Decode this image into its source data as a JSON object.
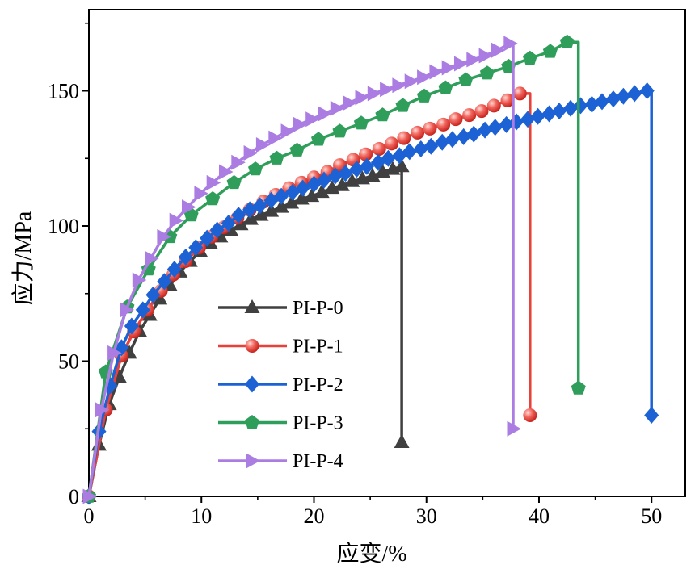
{
  "chart_data": {
    "type": "line",
    "xlabel": "应变/%",
    "ylabel": "应力/MPa",
    "xlim": [
      0,
      53
    ],
    "ylim": [
      0,
      180
    ],
    "x_ticks": [
      0,
      10,
      20,
      30,
      40,
      50
    ],
    "y_ticks": [
      0,
      50,
      100,
      150
    ],
    "x_minor_ticks": [
      5,
      15,
      25,
      35,
      45
    ],
    "y_minor_ticks": [
      25,
      75,
      125,
      175
    ],
    "grid": false,
    "legend_position": "lower-left",
    "series": [
      {
        "name": "PI-P-0",
        "color": "#404040",
        "marker": "triangle-up",
        "points": [
          [
            0,
            0
          ],
          [
            0.9,
            19
          ],
          [
            1.8,
            34
          ],
          [
            2.7,
            44
          ],
          [
            3.6,
            53
          ],
          [
            4.5,
            61
          ],
          [
            5.4,
            67
          ],
          [
            6.3,
            73
          ],
          [
            7.2,
            78
          ],
          [
            8.1,
            83
          ],
          [
            9,
            87
          ],
          [
            9.9,
            90.5
          ],
          [
            10.8,
            93.5
          ],
          [
            11.7,
            96
          ],
          [
            12.6,
            98.5
          ],
          [
            13.5,
            100.5
          ],
          [
            14.4,
            102.5
          ],
          [
            15.3,
            104
          ],
          [
            16.2,
            105.5
          ],
          [
            17.1,
            107
          ],
          [
            18,
            108.5
          ],
          [
            18.9,
            110
          ],
          [
            19.8,
            111
          ],
          [
            20.7,
            112.5
          ],
          [
            21.6,
            114
          ],
          [
            22.5,
            115
          ],
          [
            23.4,
            116.5
          ],
          [
            24.3,
            117.5
          ],
          [
            25.2,
            118.5
          ],
          [
            26.1,
            120
          ],
          [
            27,
            121
          ],
          [
            27.8,
            122
          ]
        ],
        "drop_x": 27.8,
        "drop_y": 20
      },
      {
        "name": "PI-P-1",
        "color": "#e8413a",
        "marker": "circle",
        "points": [
          [
            0,
            0
          ],
          [
            1.5,
            32
          ],
          [
            2.9,
            52
          ],
          [
            4,
            61
          ],
          [
            5.2,
            69
          ],
          [
            6.4,
            76
          ],
          [
            7.5,
            82
          ],
          [
            8.6,
            87
          ],
          [
            9.8,
            92
          ],
          [
            10.9,
            96
          ],
          [
            12,
            99.5
          ],
          [
            13.2,
            103
          ],
          [
            14.3,
            106
          ],
          [
            15.5,
            109
          ],
          [
            16.6,
            111.5
          ],
          [
            17.8,
            114
          ],
          [
            18.9,
            116
          ],
          [
            20,
            118
          ],
          [
            21.2,
            120
          ],
          [
            22.3,
            122.5
          ],
          [
            23.5,
            124.5
          ],
          [
            24.6,
            126.5
          ],
          [
            25.8,
            128.5
          ],
          [
            26.9,
            130.5
          ],
          [
            28,
            132.5
          ],
          [
            29.2,
            134.5
          ],
          [
            30.3,
            136
          ],
          [
            31.5,
            137.5
          ],
          [
            32.6,
            139.5
          ],
          [
            33.8,
            141
          ],
          [
            34.9,
            142.5
          ],
          [
            36,
            144.5
          ],
          [
            37.2,
            146.5
          ],
          [
            38.3,
            149
          ]
        ],
        "drop_x": 39.2,
        "drop_y": 30
      },
      {
        "name": "PI-P-2",
        "color": "#1d62d4",
        "marker": "diamond",
        "points": [
          [
            0,
            0
          ],
          [
            0.9,
            24
          ],
          [
            1.9,
            41
          ],
          [
            2.9,
            55
          ],
          [
            3.8,
            63
          ],
          [
            4.8,
            69
          ],
          [
            5.7,
            74.5
          ],
          [
            6.7,
            79.5
          ],
          [
            7.6,
            84
          ],
          [
            8.6,
            88.5
          ],
          [
            9.5,
            92
          ],
          [
            10.5,
            95.5
          ],
          [
            11.4,
            98.5
          ],
          [
            12.4,
            101
          ],
          [
            13.3,
            104
          ],
          [
            14.3,
            106
          ],
          [
            15.2,
            107.5
          ],
          [
            16.2,
            109.5
          ],
          [
            17.1,
            111
          ],
          [
            18.1,
            112.5
          ],
          [
            19,
            114
          ],
          [
            20,
            115.5
          ],
          [
            20.9,
            117
          ],
          [
            21.9,
            118.5
          ],
          [
            22.8,
            119.5
          ],
          [
            23.8,
            121
          ],
          [
            24.7,
            122
          ],
          [
            25.7,
            123.5
          ],
          [
            26.6,
            125
          ],
          [
            27.6,
            126
          ],
          [
            28.5,
            127.5
          ],
          [
            29.5,
            128.5
          ],
          [
            30.4,
            129.5
          ],
          [
            31.4,
            131
          ],
          [
            32.3,
            132
          ],
          [
            33.3,
            133
          ],
          [
            34.2,
            134
          ],
          [
            35.2,
            135.5
          ],
          [
            36.1,
            136.5
          ],
          [
            37.1,
            137.5
          ],
          [
            38,
            138.5
          ],
          [
            39,
            139.5
          ],
          [
            39.9,
            140.5
          ],
          [
            40.9,
            141.5
          ],
          [
            41.8,
            142.5
          ],
          [
            42.8,
            143.5
          ],
          [
            43.7,
            144.5
          ],
          [
            44.7,
            145
          ],
          [
            45.6,
            146
          ],
          [
            46.6,
            147
          ],
          [
            47.5,
            148
          ],
          [
            48.5,
            149
          ],
          [
            49.6,
            150
          ]
        ],
        "drop_x": 50,
        "drop_y": 30
      },
      {
        "name": "PI-P-3",
        "color": "#2f9e5a",
        "marker": "pentagon",
        "points": [
          [
            0,
            0
          ],
          [
            1.5,
            46
          ],
          [
            3.4,
            70
          ],
          [
            5.3,
            84
          ],
          [
            7.2,
            96
          ],
          [
            9.1,
            104
          ],
          [
            11,
            110
          ],
          [
            12.9,
            116
          ],
          [
            14.8,
            121
          ],
          [
            16.7,
            125
          ],
          [
            18.5,
            128
          ],
          [
            20.4,
            132
          ],
          [
            22.3,
            135
          ],
          [
            24.2,
            138
          ],
          [
            26.1,
            141
          ],
          [
            27.9,
            144.5
          ],
          [
            29.8,
            148
          ],
          [
            31.7,
            151
          ],
          [
            33.5,
            154
          ],
          [
            35.4,
            156.5
          ],
          [
            37.3,
            159
          ],
          [
            39.2,
            162
          ],
          [
            41,
            164.5
          ],
          [
            42.5,
            168
          ]
        ],
        "drop_x": 43.5,
        "drop_y": 40
      },
      {
        "name": "PI-P-4",
        "color": "#ab7de3",
        "marker": "triangle-right",
        "points": [
          [
            0,
            0
          ],
          [
            1.1,
            32
          ],
          [
            2.2,
            53
          ],
          [
            3.3,
            69
          ],
          [
            4.4,
            80
          ],
          [
            5.5,
            88
          ],
          [
            6.6,
            96
          ],
          [
            7.7,
            102
          ],
          [
            8.8,
            107
          ],
          [
            9.9,
            112
          ],
          [
            11,
            116
          ],
          [
            12.1,
            120
          ],
          [
            13.2,
            123.5
          ],
          [
            14.3,
            127
          ],
          [
            15.4,
            130
          ],
          [
            16.5,
            132.5
          ],
          [
            17.6,
            135
          ],
          [
            18.7,
            137.5
          ],
          [
            19.8,
            139.5
          ],
          [
            20.9,
            141.5
          ],
          [
            22,
            143.5
          ],
          [
            23.1,
            145.5
          ],
          [
            24.2,
            147.5
          ],
          [
            25.3,
            149
          ],
          [
            26.4,
            150.5
          ],
          [
            27.5,
            152
          ],
          [
            28.6,
            153.5
          ],
          [
            29.7,
            155
          ],
          [
            30.8,
            157
          ],
          [
            31.9,
            158.5
          ],
          [
            33,
            160
          ],
          [
            34.1,
            161.5
          ],
          [
            35.2,
            163
          ],
          [
            36.3,
            165
          ],
          [
            37.4,
            167.5
          ]
        ],
        "drop_x": 37.7,
        "drop_y": 25
      }
    ]
  }
}
